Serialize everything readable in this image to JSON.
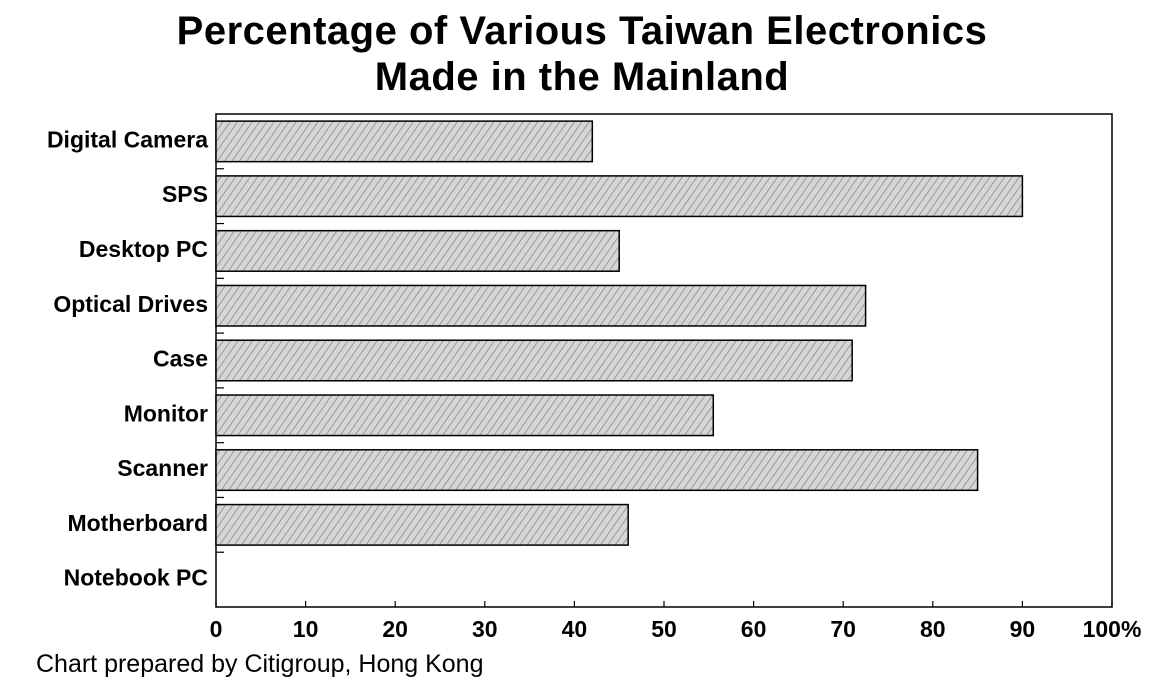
{
  "chart_data": {
    "type": "bar",
    "orientation": "horizontal",
    "title": [
      "Percentage of Various Taiwan Electronics",
      "Made in the Mainland"
    ],
    "categories": [
      "Digital Camera",
      "SPS",
      "Desktop PC",
      "Optical Drives",
      "Case",
      "Monitor",
      "Scanner",
      "Motherboard",
      "Notebook PC"
    ],
    "values": [
      42,
      90,
      45,
      72.5,
      71,
      55.5,
      85,
      46,
      0
    ],
    "xlim": [
      0,
      100
    ],
    "xticks": [
      "0",
      "10",
      "20",
      "30",
      "40",
      "50",
      "60",
      "70",
      "80",
      "90",
      "100%"
    ],
    "grid": false,
    "legend": "none",
    "bar_fill": "#c8c8c8",
    "bar_stroke": "#000000"
  },
  "credit": "Chart prepared by Citigroup, Hong Kong"
}
